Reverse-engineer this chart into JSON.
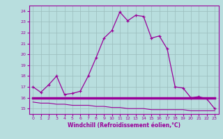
{
  "xlabel": "Windchill (Refroidissement éolien,°C)",
  "xlim": [
    -0.5,
    23.5
  ],
  "ylim": [
    14.5,
    24.5
  ],
  "yticks": [
    15,
    16,
    17,
    18,
    19,
    20,
    21,
    22,
    23,
    24
  ],
  "xticks": [
    0,
    1,
    2,
    3,
    4,
    5,
    6,
    7,
    8,
    9,
    10,
    11,
    12,
    13,
    14,
    15,
    16,
    17,
    18,
    19,
    20,
    21,
    22,
    23
  ],
  "bg_color": "#b8dede",
  "grid_color": "#9bbcbc",
  "line_color": "#990099",
  "line1_x": [
    0,
    1,
    2,
    3,
    4,
    5,
    6,
    7,
    8,
    9,
    10,
    11,
    12,
    13,
    14,
    15,
    16,
    17,
    18,
    19,
    20,
    21,
    22,
    23
  ],
  "line1_y": [
    17.0,
    16.5,
    17.2,
    18.0,
    16.3,
    16.4,
    16.6,
    18.0,
    19.7,
    21.5,
    22.2,
    23.9,
    23.1,
    23.6,
    23.5,
    21.5,
    21.7,
    20.5,
    17.0,
    16.9,
    16.0,
    16.1,
    15.9,
    15.0
  ],
  "line2_x": [
    0,
    1,
    2,
    3,
    4,
    5,
    6,
    7,
    8,
    9,
    10,
    11,
    12,
    13,
    14,
    15,
    16,
    17,
    18,
    19,
    20,
    21,
    22,
    23
  ],
  "line2_y": [
    16.0,
    16.0,
    16.0,
    16.0,
    16.0,
    16.0,
    16.0,
    16.0,
    16.0,
    16.0,
    16.0,
    16.0,
    16.0,
    16.0,
    16.0,
    16.0,
    16.0,
    16.0,
    16.0,
    16.0,
    16.0,
    16.0,
    16.0,
    16.0
  ],
  "line3_x": [
    0,
    1,
    2,
    3,
    4,
    5,
    6,
    7,
    8,
    9,
    10,
    11,
    12,
    13,
    14,
    15,
    16,
    17,
    18,
    19,
    20,
    21,
    22,
    23
  ],
  "line3_y": [
    15.6,
    15.5,
    15.5,
    15.4,
    15.4,
    15.3,
    15.3,
    15.3,
    15.2,
    15.2,
    15.1,
    15.1,
    15.0,
    15.0,
    15.0,
    14.9,
    14.9,
    14.9,
    14.9,
    14.9,
    14.8,
    14.8,
    14.8,
    14.8
  ]
}
